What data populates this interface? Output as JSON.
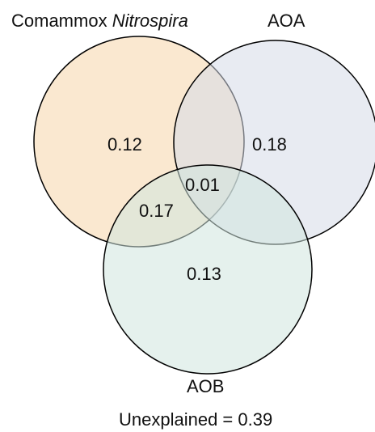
{
  "sets": {
    "comammox": {
      "label_prefix": "Comammox ",
      "label_italic": "Nitrospira",
      "color": "#f5d5aa"
    },
    "aoa": {
      "label": "AOA",
      "color": "#d6dae7"
    },
    "aob": {
      "label": "AOB",
      "color": "#cfe6df"
    }
  },
  "regions": {
    "comammox_only": "0.12",
    "aoa_only": "0.18",
    "comammox_aob": "0.17",
    "all_three": "0.01",
    "aob_only": "0.13"
  },
  "unexplained": "Unexplained = 0.39"
}
